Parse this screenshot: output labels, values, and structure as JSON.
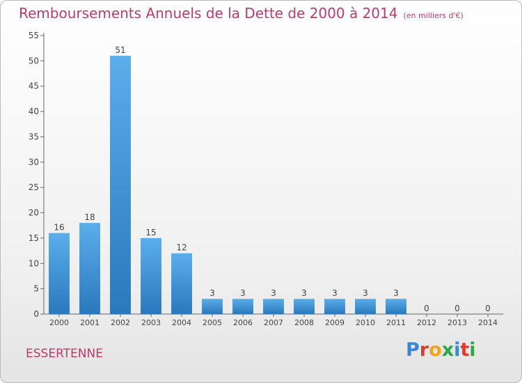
{
  "header": {
    "title": "Remboursements Annuels de la Dette de 2000 à 2014",
    "unit": "(en milliers d'€)"
  },
  "footer": {
    "commune": "ESSERTENNE",
    "logo": {
      "letters": [
        "P",
        "r",
        "o",
        "x",
        "i",
        "t",
        "i"
      ],
      "colors": [
        "#3a86d6",
        "#e23a2c",
        "#f2a51a",
        "#2aa845",
        "#3a86d6",
        "#e23a2c",
        "#2aa845"
      ]
    }
  },
  "chart_data": {
    "type": "bar",
    "title": "Remboursements Annuels de la Dette de 2000 à 2014",
    "subtitle": "(en milliers d'€)",
    "xlabel": "",
    "ylabel": "",
    "categories": [
      "2000",
      "2001",
      "2002",
      "2003",
      "2004",
      "2005",
      "2006",
      "2007",
      "2008",
      "2009",
      "2010",
      "2011",
      "2012",
      "2013",
      "2014"
    ],
    "values": [
      16,
      18,
      51,
      15,
      12,
      3,
      3,
      3,
      3,
      3,
      3,
      3,
      0,
      0,
      0
    ],
    "ylim": [
      0,
      55
    ],
    "yticks": [
      0,
      5,
      10,
      15,
      20,
      25,
      30,
      35,
      40,
      45,
      50,
      55
    ],
    "grid": false,
    "legend": "none",
    "bar_color": "#3f94d6"
  }
}
